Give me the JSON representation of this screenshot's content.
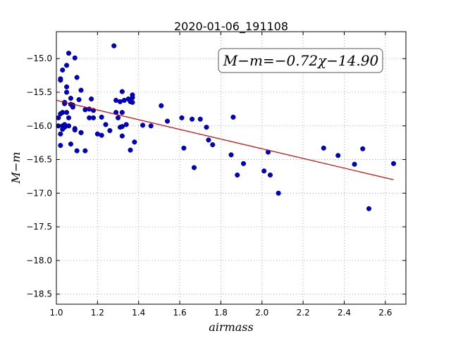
{
  "chart_data": {
    "type": "scatter",
    "title": "2020-01-06_191108",
    "xlabel": "airmass",
    "ylabel": "M−m",
    "xlim": [
      1.0,
      2.7
    ],
    "ylim": [
      -18.65,
      -14.6
    ],
    "xticks": [
      1.0,
      1.2,
      1.4,
      1.6,
      1.8,
      2.0,
      2.2,
      2.4,
      2.6
    ],
    "yticks": [
      -15.0,
      -15.5,
      -16.0,
      -16.5,
      -17.0,
      -17.5,
      -18.0,
      -18.5
    ],
    "xtick_labels": [
      "1.0",
      "1.2",
      "1.4",
      "1.6",
      "1.8",
      "2.0",
      "2.2",
      "2.4",
      "2.6"
    ],
    "ytick_labels": [
      "−15.0",
      "−15.5",
      "−16.0",
      "−16.5",
      "−17.0",
      "−17.5",
      "−18.0",
      "−18.5"
    ],
    "grid": true,
    "annotation": "M−m=−0.72χ−14.90",
    "annotation_placement": "top-right",
    "series": [
      {
        "kind": "points",
        "color": "#0000cc",
        "x": [
          1.01,
          1.02,
          1.02,
          1.02,
          1.03,
          1.02,
          1.03,
          1.04,
          1.05,
          1.04,
          1.05,
          1.06,
          1.05,
          1.07,
          1.07,
          1.08,
          1.09,
          1.09,
          1.1,
          1.11,
          1.12,
          1.03,
          1.04,
          1.05,
          1.06,
          1.07,
          1.09,
          1.1,
          1.12,
          1.14,
          1.14,
          1.16,
          1.17,
          1.18,
          1.18,
          1.2,
          1.22,
          1.24,
          1.26,
          1.28,
          1.29,
          1.29,
          1.3,
          1.31,
          1.31,
          1.32,
          1.32,
          1.32,
          1.33,
          1.34,
          1.35,
          1.36,
          1.36,
          1.37,
          1.37,
          1.37,
          1.38,
          1.42,
          1.46,
          1.51,
          1.54,
          1.61,
          1.62,
          1.66,
          1.67,
          1.7,
          1.73,
          1.74,
          1.76,
          1.85,
          1.86,
          1.88,
          1.91,
          2.01,
          2.03,
          2.04,
          2.08,
          2.3,
          2.37,
          2.45,
          2.49,
          2.52,
          2.64,
          1.01,
          1.03,
          1.02,
          1.04,
          1.06,
          1.08,
          1.12,
          1.16,
          1.22,
          1.32
        ],
        "y": [
          -15.88,
          -16.12,
          -16.29,
          -15.32,
          -15.17,
          -15.3,
          -15.8,
          -15.65,
          -15.1,
          -15.67,
          -15.42,
          -14.92,
          -15.5,
          -15.59,
          -15.68,
          -15.72,
          -16.04,
          -14.99,
          -15.28,
          -15.61,
          -16.1,
          -16.0,
          -16.02,
          -15.8,
          -15.88,
          -16.27,
          -16.06,
          -16.37,
          -15.47,
          -15.76,
          -16.37,
          -15.88,
          -15.6,
          -15.77,
          -15.88,
          -16.12,
          -16.14,
          -15.98,
          -16.07,
          -14.81,
          -15.62,
          -15.8,
          -15.88,
          -15.64,
          -16.02,
          -15.49,
          -15.8,
          -16.01,
          -15.62,
          -15.98,
          -15.6,
          -15.64,
          -16.36,
          -15.58,
          -15.54,
          -15.65,
          -16.24,
          -15.99,
          -16.0,
          -15.7,
          -15.93,
          -15.88,
          -16.33,
          -15.9,
          -16.62,
          -15.9,
          -16.02,
          -16.21,
          -16.28,
          -16.43,
          -15.87,
          -16.73,
          -16.56,
          -16.67,
          -16.39,
          -16.73,
          -17.0,
          -16.33,
          -16.44,
          -16.57,
          -16.34,
          -17.23,
          -16.56,
          -16.0,
          -16.05,
          -15.82,
          -15.98,
          -16.0,
          -15.69,
          -16.1,
          -15.75,
          -15.87,
          -16.15
        ]
      },
      {
        "kind": "fit-line",
        "color": "#cc0000",
        "x": [
          1.0,
          2.64
        ],
        "y": [
          -15.62,
          -16.8
        ]
      }
    ]
  }
}
